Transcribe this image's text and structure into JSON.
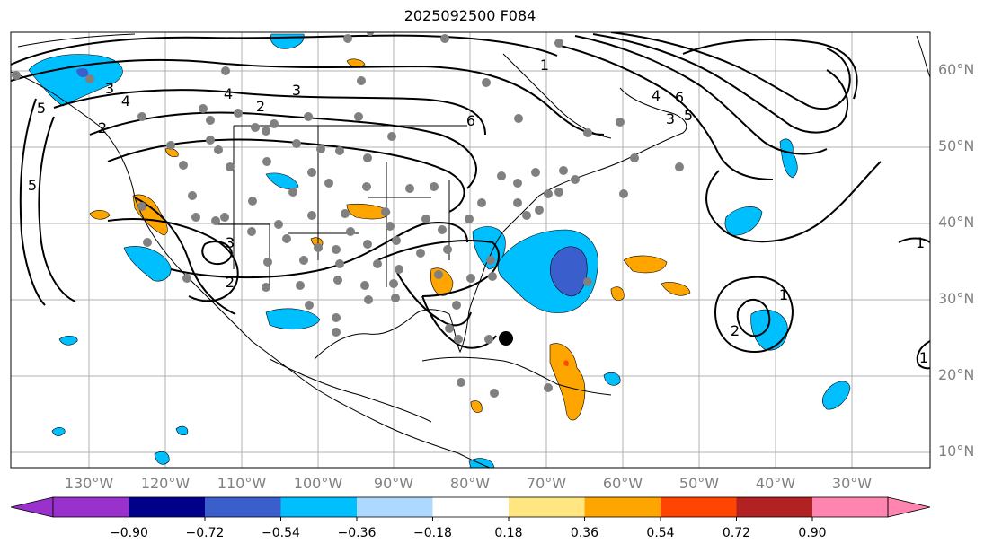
{
  "title": "2025092500 F084",
  "lat_labels": [
    "60°N",
    "50°N",
    "40°N",
    "30°N",
    "20°N",
    "10°N"
  ],
  "lon_labels": [
    "130°W",
    "120°W",
    "110°W",
    "100°W",
    "90°W",
    "80°W",
    "70°W",
    "60°W",
    "50°W",
    "40°W",
    "30°W"
  ],
  "contour_labels": [
    "4",
    "3",
    "2",
    "6",
    "5",
    "4",
    "3",
    "2",
    "5",
    "6",
    "5",
    "4",
    "3",
    "1",
    "3",
    "2",
    "1",
    "2",
    "1",
    "1"
  ],
  "colorbar": {
    "ticks": [
      "−0.90",
      "−0.72",
      "−0.54",
      "−0.36",
      "−0.18",
      "0.18",
      "0.36",
      "0.54",
      "0.72",
      "0.90"
    ],
    "colors": [
      "#9932cc",
      "#00008b",
      "#3a5fcd",
      "#00bfff",
      "#add8ff",
      "#ffffff",
      "#ffe680",
      "#ffa500",
      "#ff4500",
      "#b22222",
      "#ff85b0"
    ]
  },
  "colors": {
    "negative_strong": "#3a5fcd",
    "negative": "#00bfff",
    "positive": "#ffa500",
    "positive_strong": "#ff4500",
    "station": "#808080",
    "grid": "#b0b0b0"
  }
}
